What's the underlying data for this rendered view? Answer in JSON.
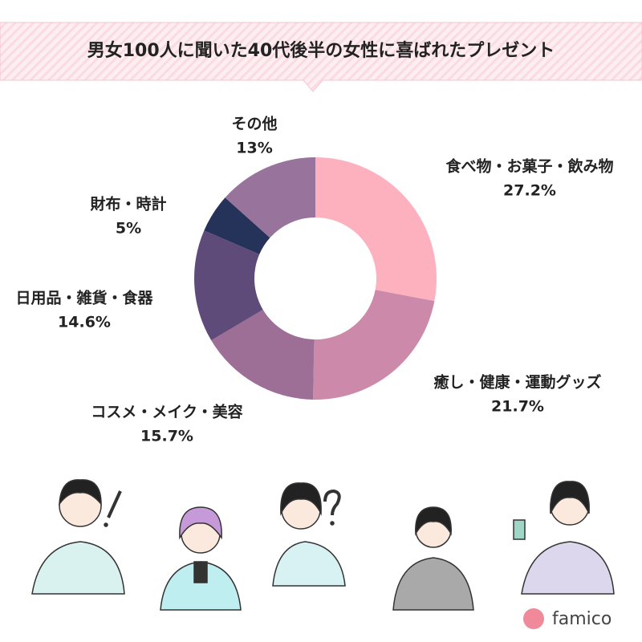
{
  "chart_data": {
    "type": "pie",
    "donut": true,
    "title": "男女100人に聞いた40代後半の女性に喜ばれたプレゼント",
    "categories": [
      "食べ物・お菓子・飲み物",
      "癒し・健康・運動グッズ",
      "コスメ・メイク・美容",
      "日用品・雑貨・食器",
      "財布・時計",
      "その他"
    ],
    "values": [
      27.2,
      21.7,
      15.7,
      14.6,
      5,
      13
    ],
    "value_labels": [
      "27.2%",
      "21.7%",
      "15.7%",
      "14.6%",
      "5%",
      "13%"
    ],
    "colors": [
      "#fdb1be",
      "#cc89a9",
      "#9d6e96",
      "#5f4b79",
      "#253259",
      "#98739b"
    ]
  },
  "brand": "famico"
}
